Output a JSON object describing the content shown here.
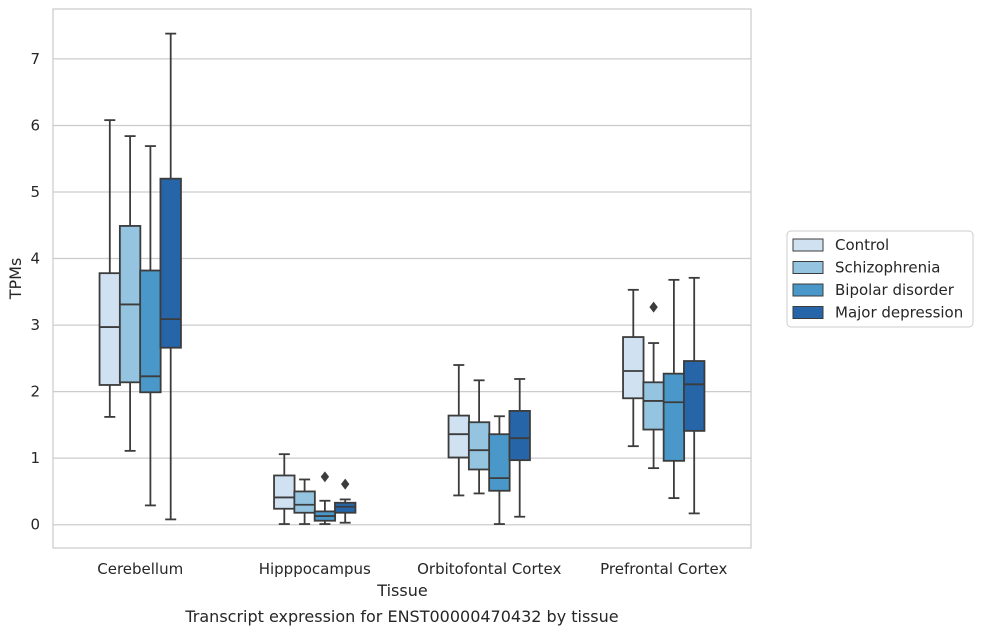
{
  "caption": "Transcript expression for ENST00000470432 by tissue",
  "chart_data": {
    "type": "box",
    "xlabel": "Tissue",
    "ylabel": "TPMs",
    "ylim": [
      -0.35,
      7.75
    ],
    "yticks": [
      0,
      1,
      2,
      3,
      4,
      5,
      6,
      7
    ],
    "grid": "horizontal",
    "legend_position": "right",
    "categories": [
      "Cerebellum",
      "Hipppocampus",
      "Orbitofontal Cortex",
      "Prefrontal Cortex"
    ],
    "series": [
      {
        "name": "Control",
        "color": "#d0e1f2",
        "boxes": [
          {
            "min": 1.62,
            "q1": 2.1,
            "median": 2.97,
            "q3": 3.78,
            "max": 6.08,
            "outliers": []
          },
          {
            "min": 0.01,
            "q1": 0.24,
            "median": 0.41,
            "q3": 0.74,
            "max": 1.06,
            "outliers": []
          },
          {
            "min": 0.44,
            "q1": 1.01,
            "median": 1.36,
            "q3": 1.64,
            "max": 2.4,
            "outliers": []
          },
          {
            "min": 1.18,
            "q1": 1.9,
            "median": 2.31,
            "q3": 2.82,
            "max": 3.53,
            "outliers": []
          }
        ]
      },
      {
        "name": "Schizophrenia",
        "color": "#94c4df",
        "boxes": [
          {
            "min": 1.11,
            "q1": 2.14,
            "median": 3.31,
            "q3": 4.49,
            "max": 5.84,
            "outliers": []
          },
          {
            "min": 0.01,
            "q1": 0.18,
            "median": 0.3,
            "q3": 0.5,
            "max": 0.68,
            "outliers": []
          },
          {
            "min": 0.47,
            "q1": 0.83,
            "median": 1.12,
            "q3": 1.54,
            "max": 2.17,
            "outliers": []
          },
          {
            "min": 0.85,
            "q1": 1.43,
            "median": 1.86,
            "q3": 2.14,
            "max": 2.73,
            "outliers": [
              3.27
            ]
          }
        ]
      },
      {
        "name": "Bipolar disorder",
        "color": "#4a98c9",
        "boxes": [
          {
            "min": 0.29,
            "q1": 1.99,
            "median": 2.23,
            "q3": 3.82,
            "max": 5.69,
            "outliers": []
          },
          {
            "min": 0.01,
            "q1": 0.06,
            "median": 0.13,
            "q3": 0.2,
            "max": 0.36,
            "outliers": [
              0.72
            ]
          },
          {
            "min": 0.01,
            "q1": 0.51,
            "median": 0.7,
            "q3": 1.36,
            "max": 1.63,
            "outliers": []
          },
          {
            "min": 0.4,
            "q1": 0.96,
            "median": 1.84,
            "q3": 2.27,
            "max": 3.68,
            "outliers": []
          }
        ]
      },
      {
        "name": "Major depression",
        "color": "#2565a8",
        "boxes": [
          {
            "min": 0.08,
            "q1": 2.66,
            "median": 3.09,
            "q3": 5.2,
            "max": 7.38,
            "outliers": []
          },
          {
            "min": 0.03,
            "q1": 0.18,
            "median": 0.27,
            "q3": 0.33,
            "max": 0.38,
            "outliers": [
              0.61
            ]
          },
          {
            "min": 0.12,
            "q1": 0.97,
            "median": 1.3,
            "q3": 1.71,
            "max": 2.19,
            "outliers": []
          },
          {
            "min": 0.17,
            "q1": 1.41,
            "median": 2.11,
            "q3": 2.46,
            "max": 3.71,
            "outliers": []
          }
        ]
      }
    ]
  }
}
